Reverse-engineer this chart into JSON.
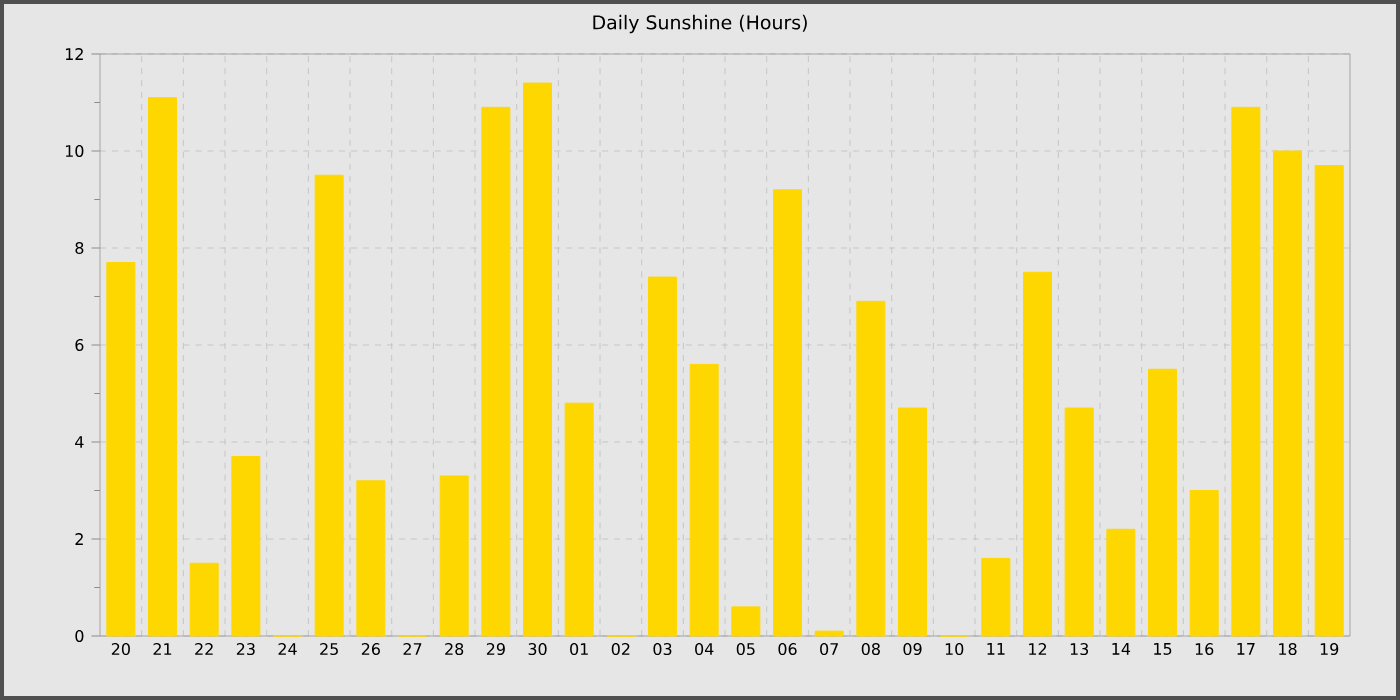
{
  "chart_data": {
    "type": "bar",
    "title": "Daily Sunshine (Hours)",
    "categories": [
      "20",
      "21",
      "22",
      "23",
      "24",
      "25",
      "26",
      "27",
      "28",
      "29",
      "30",
      "01",
      "02",
      "03",
      "04",
      "05",
      "06",
      "07",
      "08",
      "09",
      "10",
      "11",
      "12",
      "13",
      "14",
      "15",
      "16",
      "17",
      "18",
      "19"
    ],
    "values": [
      7.7,
      11.1,
      1.5,
      3.7,
      0,
      9.5,
      3.2,
      0,
      3.3,
      10.9,
      11.4,
      4.8,
      0,
      7.4,
      5.6,
      0.6,
      9.2,
      0.1,
      6.9,
      4.7,
      0,
      1.6,
      7.5,
      4.7,
      2.2,
      5.5,
      3.0,
      10.9,
      10.0,
      9.7
    ],
    "color": "#ffd700",
    "ylim": [
      0,
      12
    ],
    "yticks": [
      0,
      2,
      4,
      6,
      8,
      10,
      12
    ],
    "grid": true
  }
}
